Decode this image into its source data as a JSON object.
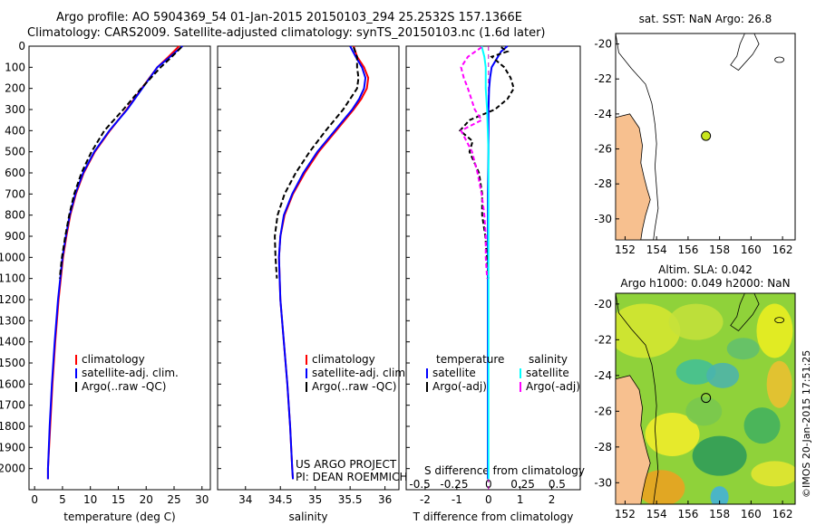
{
  "header": {
    "line1": "Argo profile: AO 5904369_54 01-Jan-2015 20150103_294 25.2532S 157.1366E",
    "line2": "Climatology: CARS2009. Satellite-adjusted climatology: synTS_20150103.nc (1.6d later)"
  },
  "colors": {
    "climatology": "#ff0000",
    "satellite": "#0000ff",
    "argo": "#000000",
    "sal_satellite": "#00ffff",
    "sal_argo": "#ff00ff",
    "land": "#f7c08f"
  },
  "chart_data": [
    {
      "type": "line",
      "id": "temperature",
      "xlabel": "temperature (deg C)",
      "ylabel": "",
      "xlim": [
        -1,
        31.5
      ],
      "ylim": [
        2100,
        0
      ],
      "xticks": [
        "0",
        "5",
        "10",
        "15",
        "20",
        "25",
        "30"
      ],
      "yticks": [
        "0",
        "100",
        "200",
        "300",
        "400",
        "500",
        "600",
        "700",
        "800",
        "900",
        "1000",
        "1100",
        "1200",
        "1300",
        "1400",
        "1500",
        "1600",
        "1700",
        "1800",
        "1900",
        "2000"
      ],
      "legend": [
        "climatology",
        "satellite-adj. clim.",
        "Argo(..raw -QC)"
      ],
      "series": [
        {
          "name": "climatology",
          "depth": [
            0,
            50,
            100,
            200,
            300,
            400,
            500,
            600,
            700,
            800,
            900,
            1000,
            1200,
            1400,
            1600,
            1800,
            2000,
            2050
          ],
          "values": [
            25.9,
            24.0,
            22.0,
            19.2,
            16.5,
            13.5,
            10.8,
            8.8,
            7.4,
            6.4,
            5.7,
            5.1,
            4.3,
            3.7,
            3.2,
            2.8,
            2.4,
            2.4
          ]
        },
        {
          "name": "satellite-adj. clim.",
          "depth": [
            0,
            50,
            100,
            200,
            300,
            400,
            500,
            600,
            700,
            800,
            900,
            1000,
            1200,
            1400,
            1600,
            1800,
            2000,
            2050
          ],
          "values": [
            26.5,
            24.3,
            22.0,
            19.3,
            16.6,
            13.4,
            10.7,
            8.7,
            7.3,
            6.3,
            5.6,
            5.0,
            4.2,
            3.6,
            3.1,
            2.7,
            2.4,
            2.4
          ]
        },
        {
          "name": "Argo(..raw -QC)",
          "depth": [
            5,
            50,
            100,
            200,
            300,
            400,
            500,
            600,
            700,
            800,
            900,
            1000,
            1100
          ],
          "values": [
            26.3,
            24.6,
            22.6,
            19.1,
            15.9,
            12.5,
            10.2,
            8.4,
            7.1,
            6.2,
            5.5,
            4.9,
            4.5
          ]
        }
      ]
    },
    {
      "type": "line",
      "id": "salinity",
      "xlabel": "salinity",
      "xlim": [
        33.6,
        36.2
      ],
      "ylim": [
        2100,
        0
      ],
      "xticks": [
        "34",
        "34.5",
        "35",
        "35.5",
        "36"
      ],
      "legend": [
        "climatology",
        "satellite-adj. clim.",
        "Argo(..raw -QC)"
      ],
      "annotation": [
        "US ARGO PROJECT",
        "PI: DEAN ROEMMICH"
      ],
      "series": [
        {
          "name": "climatology",
          "depth": [
            0,
            50,
            100,
            150,
            200,
            250,
            300,
            400,
            500,
            600,
            700,
            800,
            900,
            1000,
            1200,
            1400,
            1600,
            1800,
            2000,
            2050
          ],
          "values": [
            35.55,
            35.6,
            35.7,
            35.76,
            35.74,
            35.66,
            35.55,
            35.3,
            35.05,
            34.85,
            34.68,
            34.56,
            34.5,
            34.48,
            34.5,
            34.55,
            34.6,
            34.64,
            34.67,
            34.68
          ]
        },
        {
          "name": "satellite-adj. clim.",
          "depth": [
            0,
            50,
            100,
            150,
            200,
            250,
            300,
            400,
            500,
            600,
            700,
            800,
            900,
            1000,
            1200,
            1400,
            1600,
            1800,
            2000,
            2050
          ],
          "values": [
            35.5,
            35.58,
            35.67,
            35.72,
            35.7,
            35.63,
            35.53,
            35.28,
            35.03,
            34.83,
            34.67,
            34.55,
            34.5,
            34.48,
            34.5,
            34.55,
            34.6,
            34.64,
            34.67,
            34.68
          ]
        },
        {
          "name": "Argo(..raw -QC)",
          "depth": [
            5,
            50,
            100,
            150,
            200,
            250,
            300,
            400,
            500,
            600,
            700,
            800,
            900,
            1000,
            1100
          ],
          "values": [
            35.55,
            35.6,
            35.6,
            35.62,
            35.6,
            35.5,
            35.4,
            35.15,
            34.92,
            34.72,
            34.56,
            34.46,
            34.42,
            34.43,
            34.45
          ]
        }
      ]
    },
    {
      "type": "line",
      "id": "difference",
      "xlabel": "T difference from climatology",
      "top_label": "S difference from climatology",
      "xlim": [
        -2.6,
        2.9
      ],
      "ylim": [
        2100,
        0
      ],
      "xticks_T": [
        "-2",
        "-1",
        "0",
        "1",
        "2"
      ],
      "xticks_S": [
        "-0.5",
        "-0.25",
        "0",
        "0.25",
        "0.5"
      ],
      "legend_headers": [
        "temperature",
        "salinity"
      ],
      "legend": [
        "satellite",
        "Argo(-adj)",
        "satellite",
        "Argo(-adj)"
      ],
      "series": [
        {
          "name": "T satellite",
          "depth": [
            0,
            25,
            50,
            75,
            100,
            150,
            200,
            300,
            500,
            700,
            1000,
            1500,
            2050
          ],
          "values": [
            0.6,
            0.4,
            0.3,
            0.2,
            0.1,
            0.05,
            0.02,
            0.0,
            0.0,
            -0.02,
            -0.02,
            -0.02,
            -0.02
          ]
        },
        {
          "name": "T Argo(-adj)",
          "depth": [
            5,
            25,
            50,
            75,
            100,
            150,
            200,
            250,
            300,
            350,
            400,
            450,
            500,
            600,
            700,
            800,
            900,
            1000,
            1100
          ],
          "values": [
            0.4,
            0.6,
            0.1,
            0.3,
            0.5,
            0.7,
            0.8,
            0.6,
            0.2,
            -0.6,
            -0.9,
            -0.5,
            -0.6,
            -0.3,
            -0.2,
            -0.2,
            -0.1,
            -0.05,
            0.0
          ]
        },
        {
          "name": "S satellite",
          "depth": [
            0,
            50,
            100,
            200,
            300,
            500,
            700,
            1000,
            1500,
            2050
          ],
          "values": [
            -0.05,
            -0.03,
            -0.02,
            -0.02,
            -0.01,
            0.0,
            0.0,
            0.0,
            0.0,
            0.0
          ]
        },
        {
          "name": "S Argo(-adj)",
          "depth": [
            5,
            50,
            100,
            150,
            200,
            300,
            350,
            400,
            500,
            600,
            700,
            800,
            900,
            1000,
            1100
          ],
          "values": [
            -0.05,
            -0.15,
            -0.2,
            -0.18,
            -0.15,
            -0.1,
            -0.05,
            -0.2,
            -0.12,
            -0.08,
            -0.05,
            -0.03,
            -0.02,
            -0.02,
            -0.01
          ]
        }
      ]
    },
    {
      "type": "scatter",
      "id": "map-sst",
      "title": "sat. SST: NaN Argo: 26.8",
      "xlim": [
        151.4,
        162.8
      ],
      "ylim": [
        -31.2,
        -19.4
      ],
      "xticks": [
        "152",
        "154",
        "156",
        "158",
        "160",
        "162"
      ],
      "yticks": [
        "-20",
        "-22",
        "-24",
        "-26",
        "-28",
        "-30"
      ],
      "point": {
        "lon": 157.1366,
        "lat": -25.2532,
        "color": "#c8e61e"
      }
    },
    {
      "type": "heatmap",
      "id": "map-sla",
      "title": "Altim. SLA: 0.042",
      "subtitle": "Argo h1000: 0.049 h2000: NaN",
      "xlim": [
        151.4,
        162.8
      ],
      "ylim": [
        -31.2,
        -19.4
      ],
      "xticks": [
        "152",
        "154",
        "156",
        "158",
        "160",
        "162"
      ],
      "yticks": [
        "-20",
        "-22",
        "-24",
        "-26",
        "-28",
        "-30"
      ],
      "point": {
        "lon": 157.1366,
        "lat": -25.2532
      }
    }
  ],
  "credit": "©IMOS 20-Jan-2015 17:51:25"
}
